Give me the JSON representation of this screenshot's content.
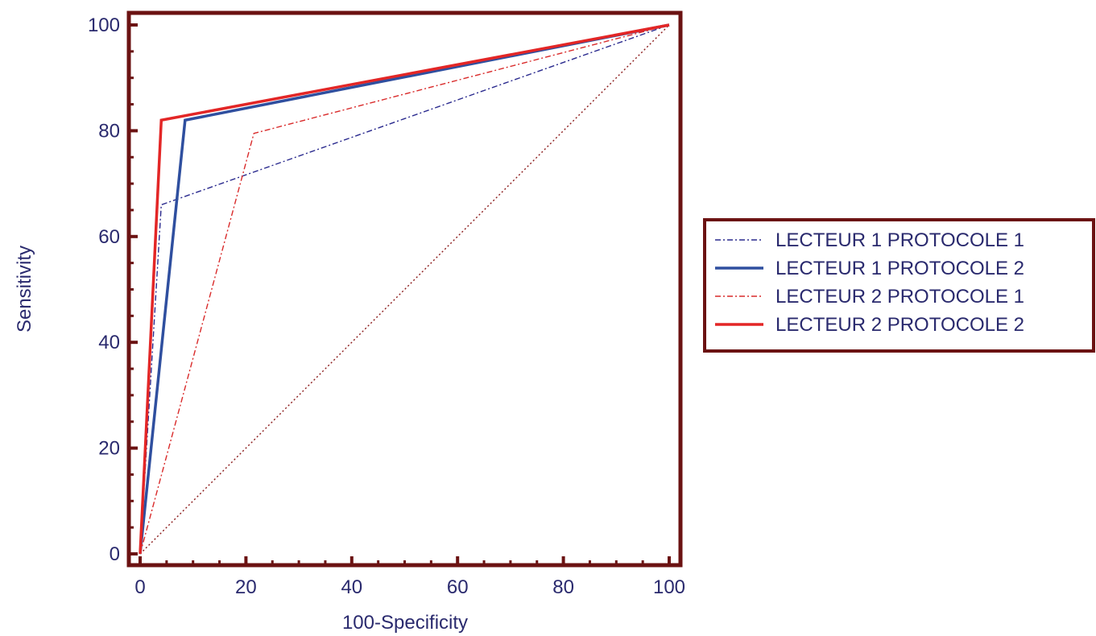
{
  "chart_data": {
    "type": "line",
    "xlabel": "100-Specificity",
    "ylabel": "Sensitivity",
    "xlim": [
      0,
      100
    ],
    "ylim": [
      0,
      100
    ],
    "xticks": [
      0,
      20,
      40,
      60,
      80,
      100
    ],
    "yticks": [
      0,
      20,
      40,
      60,
      80,
      100
    ],
    "grid": false,
    "legend_position": "right",
    "reference_line": {
      "x": [
        0,
        100
      ],
      "y": [
        0,
        100
      ],
      "color": "#8b1a1a",
      "style": "dotted"
    },
    "series": [
      {
        "name": "LECTEUR 1 PROTOCOLE 1",
        "x": [
          0,
          4,
          100
        ],
        "y": [
          0,
          66,
          100
        ],
        "color": "#2a2a8e",
        "style": "dash-dot",
        "width": "thin"
      },
      {
        "name": "LECTEUR 1 PROTOCOLE 2",
        "x": [
          0,
          8.5,
          100
        ],
        "y": [
          0,
          82,
          100
        ],
        "color": "#2f4f9f",
        "style": "solid",
        "width": "thick"
      },
      {
        "name": "LECTEUR 2 PROTOCOLE 1",
        "x": [
          0,
          21.5,
          100
        ],
        "y": [
          0,
          79.5,
          100
        ],
        "color": "#d92b2b",
        "style": "dash-dot",
        "width": "thin"
      },
      {
        "name": "LECTEUR 2 PROTOCOLE 2",
        "x": [
          0,
          4,
          100
        ],
        "y": [
          0,
          82,
          100
        ],
        "color": "#e32626",
        "style": "solid",
        "width": "thick"
      }
    ],
    "frame_color": "#6b1212",
    "text_color": "#2a2a6e"
  }
}
